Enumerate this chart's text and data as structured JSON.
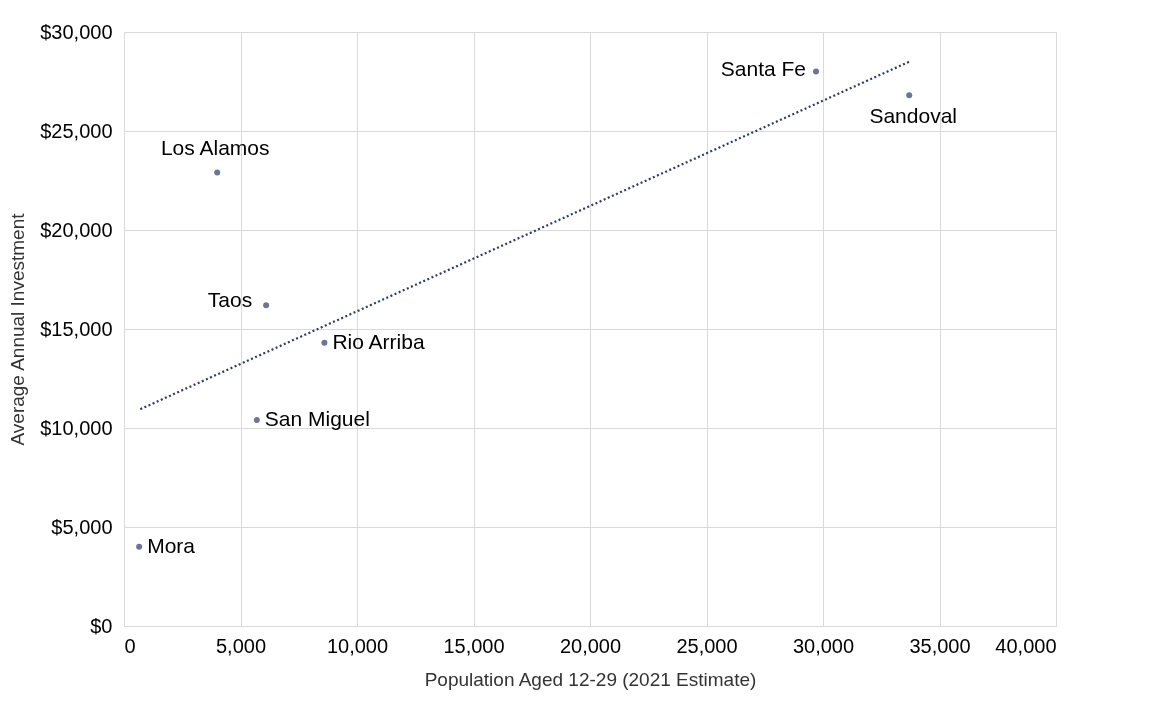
{
  "chart_data": {
    "type": "scatter",
    "xlabel": "Population Aged 12-29 (2021 Estimate)",
    "ylabel": "Average Annual Investment",
    "xlim": [
      0,
      40000
    ],
    "ylim": [
      0,
      30000
    ],
    "xticks": [
      {
        "value": 0,
        "label": "0"
      },
      {
        "value": 5000,
        "label": "5,000"
      },
      {
        "value": 10000,
        "label": "10,000"
      },
      {
        "value": 15000,
        "label": "15,000"
      },
      {
        "value": 20000,
        "label": "20,000"
      },
      {
        "value": 25000,
        "label": "25,000"
      },
      {
        "value": 30000,
        "label": "30,000"
      },
      {
        "value": 35000,
        "label": "35,000"
      },
      {
        "value": 40000,
        "label": "40,000"
      }
    ],
    "yticks": [
      {
        "value": 0,
        "label": "$0"
      },
      {
        "value": 5000,
        "label": "$5,000"
      },
      {
        "value": 10000,
        "label": "$10,000"
      },
      {
        "value": 15000,
        "label": "$15,000"
      },
      {
        "value": 20000,
        "label": "$20,000"
      },
      {
        "value": 25000,
        "label": "$25,000"
      },
      {
        "value": 30000,
        "label": "$30,000"
      }
    ],
    "grid": true,
    "marker": "circle",
    "series": [
      {
        "type": "scatter",
        "color": "#2e3a6e",
        "x": [
          650,
          4000,
          6100,
          5700,
          8600,
          29700,
          33700
        ],
        "values": [
          4000,
          22900,
          16200,
          10400,
          14300,
          28000,
          26800
        ]
      },
      {
        "type": "line",
        "color": "#2e3a6e",
        "line_style": "dotted",
        "marker": "none",
        "x": [
          700,
          33700
        ],
        "values": [
          10950,
          28500
        ]
      }
    ],
    "annotations": [
      {
        "text": "Mora",
        "x": 650,
        "y": 4000
      },
      {
        "text": "Los Alamos",
        "x": 4000,
        "y": 22900
      },
      {
        "text": "Taos",
        "x": 6100,
        "y": 16200
      },
      {
        "text": "San Miguel",
        "x": 5700,
        "y": 10400
      },
      {
        "text": "Rio Arriba",
        "x": 8600,
        "y": 14300
      },
      {
        "text": "Santa Fe",
        "x": 29700,
        "y": 28000
      },
      {
        "text": "Sandoval",
        "x": 33700,
        "y": 26800
      }
    ]
  }
}
